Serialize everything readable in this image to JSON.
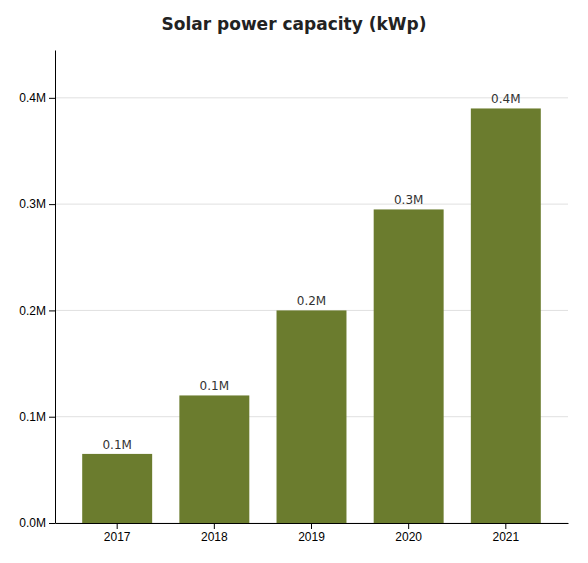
{
  "chart_data": {
    "type": "bar",
    "title": "Solar power capacity (kWp)",
    "categories": [
      "2017",
      "2018",
      "2019",
      "2020",
      "2021"
    ],
    "values": [
      0.065,
      0.12,
      0.2,
      0.295,
      0.39
    ],
    "value_labels": [
      "0.1M",
      "0.1M",
      "0.2M",
      "0.3M",
      "0.4M"
    ],
    "color": "#6b7c2e",
    "ylim": [
      0,
      0.445
    ],
    "yticks": [
      {
        "value": 0.0,
        "label": "0.0M"
      },
      {
        "value": 0.1,
        "label": "0.1M"
      },
      {
        "value": 0.2,
        "label": "0.2M"
      },
      {
        "value": 0.3,
        "label": "0.3M"
      },
      {
        "value": 0.4,
        "label": "0.4M"
      }
    ],
    "grid": true
  }
}
